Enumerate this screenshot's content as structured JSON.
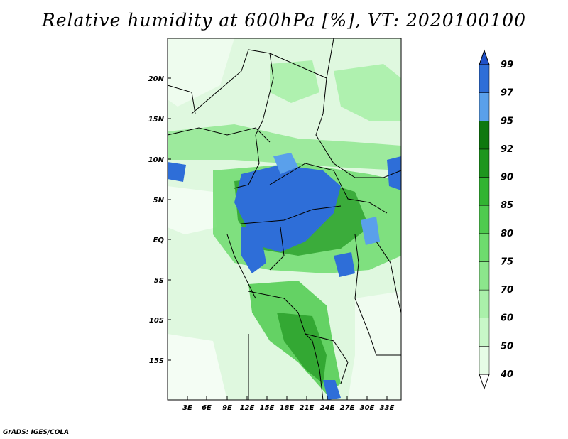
{
  "title": "Relative humidity at 600hPa [%], VT: 2020100100",
  "credit": "GrADS: IGES/COLA",
  "map": {
    "lat_labels": [
      "20N",
      "15N",
      "10N",
      "5N",
      "EQ",
      "5S",
      "10S",
      "15S"
    ],
    "lon_labels": [
      "3E",
      "6E",
      "9E",
      "12E",
      "15E",
      "18E",
      "21E",
      "24E",
      "27E",
      "30E",
      "33E"
    ]
  },
  "colorbar": {
    "levels": [
      "40",
      "50",
      "60",
      "70",
      "75",
      "80",
      "85",
      "90",
      "92",
      "95",
      "97",
      "99"
    ],
    "colors": [
      "#ffffff",
      "#e6fce6",
      "#c8f7c8",
      "#aaf0aa",
      "#8ce68c",
      "#6edc6e",
      "#4fcb4f",
      "#32b432",
      "#1e961e",
      "#0f780f",
      "#5aa0eb",
      "#2e6ed8",
      "#1e50c8"
    ]
  }
}
